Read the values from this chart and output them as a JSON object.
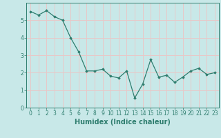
{
  "x": [
    0,
    1,
    2,
    3,
    4,
    5,
    6,
    7,
    8,
    9,
    10,
    11,
    12,
    13,
    14,
    15,
    16,
    17,
    18,
    19,
    20,
    21,
    22,
    23
  ],
  "y": [
    5.5,
    5.3,
    5.55,
    5.2,
    5.0,
    4.0,
    3.2,
    2.1,
    2.1,
    2.2,
    1.8,
    1.7,
    2.1,
    0.55,
    1.35,
    2.75,
    1.75,
    1.85,
    1.45,
    1.75,
    2.1,
    2.25,
    1.9,
    2.0
  ],
  "line_color": "#2e7d6e",
  "marker": "D",
  "markersize": 1.8,
  "linewidth": 0.9,
  "xlabel": "Humidex (Indice chaleur)",
  "xlim": [
    -0.5,
    23.5
  ],
  "ylim": [
    0,
    6
  ],
  "yticks": [
    0,
    1,
    2,
    3,
    4,
    5
  ],
  "xticks": [
    0,
    1,
    2,
    3,
    4,
    5,
    6,
    7,
    8,
    9,
    10,
    11,
    12,
    13,
    14,
    15,
    16,
    17,
    18,
    19,
    20,
    21,
    22,
    23
  ],
  "xtick_labels": [
    "0",
    "1",
    "2",
    "3",
    "4",
    "5",
    "6",
    "7",
    "8",
    "9",
    "10",
    "11",
    "12",
    "13",
    "14",
    "15",
    "16",
    "17",
    "18",
    "19",
    "20",
    "21",
    "22",
    "23"
  ],
  "bg_color": "#c8e8e8",
  "grid_color": "#e8c8c8",
  "tick_color": "#2e7d6e",
  "label_color": "#2e7d6e",
  "tick_fontsize": 5.5,
  "xlabel_fontsize": 7.0
}
